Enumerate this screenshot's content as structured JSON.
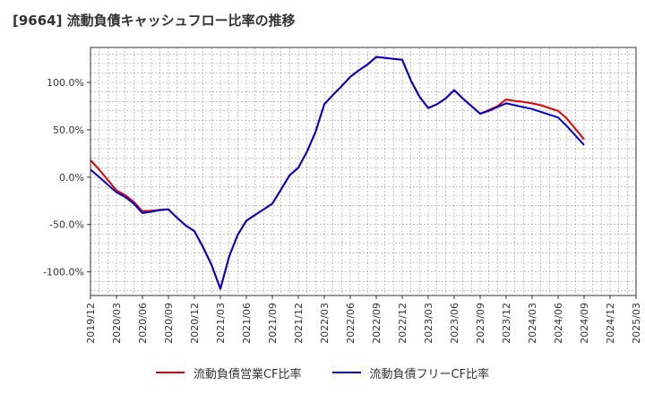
{
  "title": "[9664]  流動負債キャッシュフロー比率の推移",
  "chart_data": {
    "type": "line",
    "x": [
      "2019/12",
      "2020/03",
      "2020/06",
      "2020/09",
      "2020/12",
      "2021/03",
      "2021/06",
      "2021/09",
      "2021/12",
      "2022/03",
      "2022/06",
      "2022/09",
      "2022/12",
      "2023/03",
      "2023/06",
      "2023/09",
      "2023/12",
      "2024/03",
      "2024/06",
      "2024/09",
      "2024/12",
      "2025/03"
    ],
    "ylim": [
      -125,
      137
    ],
    "yticks": [
      100,
      50,
      0,
      -50,
      -100
    ],
    "ytick_labels": [
      "100.0%",
      "50.0%",
      "0.0%",
      "-50.0%",
      "-100.0%"
    ],
    "grid": true,
    "legend_position": "bottom",
    "series": [
      {
        "name": "流動負債営業CF比率",
        "color": "#dd0000",
        "points": [
          [
            "2019/12",
            18
          ],
          [
            "2020/01",
            8
          ],
          [
            "2020/02",
            -3
          ],
          [
            "2020/03",
            -14
          ],
          [
            "2020/04",
            -19
          ],
          [
            "2020/05",
            -26
          ],
          [
            "2020/06",
            -36
          ],
          [
            "2020/07",
            -35.5
          ],
          [
            "2020/08",
            -34.5
          ],
          [
            "2020/09",
            -34
          ],
          [
            "2020/10",
            -43
          ],
          [
            "2020/11",
            -51
          ],
          [
            "2020/12",
            -57
          ],
          [
            "2021/01",
            -74
          ],
          [
            "2021/02",
            -93
          ],
          [
            "2021/03",
            -118
          ],
          [
            "2021/04",
            -84
          ],
          [
            "2021/05",
            -61
          ],
          [
            "2021/06",
            -46
          ],
          [
            "2021/07",
            -40
          ],
          [
            "2021/08",
            -34
          ],
          [
            "2021/09",
            -28
          ],
          [
            "2021/10",
            -13
          ],
          [
            "2021/11",
            2
          ],
          [
            "2021/12",
            10
          ],
          [
            "2022/01",
            27
          ],
          [
            "2022/02",
            48
          ],
          [
            "2022/03",
            77
          ],
          [
            "2022/04",
            87
          ],
          [
            "2022/05",
            96
          ],
          [
            "2022/06",
            106
          ],
          [
            "2022/07",
            113
          ],
          [
            "2022/08",
            119
          ],
          [
            "2022/09",
            127
          ],
          [
            "2022/10",
            126
          ],
          [
            "2022/11",
            125
          ],
          [
            "2022/12",
            124
          ],
          [
            "2023/01",
            102
          ],
          [
            "2023/02",
            85
          ],
          [
            "2023/03",
            73
          ],
          [
            "2023/04",
            77
          ],
          [
            "2023/05",
            83
          ],
          [
            "2023/06",
            92
          ],
          [
            "2023/07",
            83
          ],
          [
            "2023/08",
            75
          ],
          [
            "2023/09",
            67
          ],
          [
            "2023/10",
            71
          ],
          [
            "2023/11",
            75
          ],
          [
            "2023/12",
            82
          ],
          [
            "2024/01",
            80.5
          ],
          [
            "2024/02",
            79.5
          ],
          [
            "2024/03",
            78
          ],
          [
            "2024/04",
            76
          ],
          [
            "2024/05",
            73
          ],
          [
            "2024/06",
            70
          ],
          [
            "2024/07",
            62
          ],
          [
            "2024/08",
            51
          ],
          [
            "2024/09",
            40
          ]
        ]
      },
      {
        "name": "流動負債フリーCF比率",
        "color": "#0000cc",
        "points": [
          [
            "2019/12",
            8
          ],
          [
            "2020/01",
            0
          ],
          [
            "2020/02",
            -8
          ],
          [
            "2020/03",
            -16
          ],
          [
            "2020/04",
            -21
          ],
          [
            "2020/05",
            -28
          ],
          [
            "2020/06",
            -38
          ],
          [
            "2020/07",
            -36.5
          ],
          [
            "2020/08",
            -35
          ],
          [
            "2020/09",
            -34
          ],
          [
            "2020/10",
            -43
          ],
          [
            "2020/11",
            -51
          ],
          [
            "2020/12",
            -57
          ],
          [
            "2021/01",
            -74
          ],
          [
            "2021/02",
            -93
          ],
          [
            "2021/03",
            -118
          ],
          [
            "2021/04",
            -84
          ],
          [
            "2021/05",
            -61
          ],
          [
            "2021/06",
            -46
          ],
          [
            "2021/07",
            -40
          ],
          [
            "2021/08",
            -34
          ],
          [
            "2021/09",
            -28
          ],
          [
            "2021/10",
            -13
          ],
          [
            "2021/11",
            2
          ],
          [
            "2021/12",
            10
          ],
          [
            "2022/01",
            27
          ],
          [
            "2022/02",
            48
          ],
          [
            "2022/03",
            77
          ],
          [
            "2022/04",
            87
          ],
          [
            "2022/05",
            96
          ],
          [
            "2022/06",
            106
          ],
          [
            "2022/07",
            113
          ],
          [
            "2022/08",
            119
          ],
          [
            "2022/09",
            127
          ],
          [
            "2022/10",
            126
          ],
          [
            "2022/11",
            125
          ],
          [
            "2022/12",
            124
          ],
          [
            "2023/01",
            102
          ],
          [
            "2023/02",
            85
          ],
          [
            "2023/03",
            73
          ],
          [
            "2023/04",
            77
          ],
          [
            "2023/05",
            83
          ],
          [
            "2023/06",
            92
          ],
          [
            "2023/07",
            83
          ],
          [
            "2023/08",
            75
          ],
          [
            "2023/09",
            67
          ],
          [
            "2023/10",
            70
          ],
          [
            "2023/11",
            74
          ],
          [
            "2023/12",
            78
          ],
          [
            "2024/01",
            76
          ],
          [
            "2024/02",
            74
          ],
          [
            "2024/03",
            72
          ],
          [
            "2024/04",
            69
          ],
          [
            "2024/05",
            66
          ],
          [
            "2024/06",
            63
          ],
          [
            "2024/07",
            54
          ],
          [
            "2024/08",
            44
          ],
          [
            "2024/09",
            34
          ]
        ]
      }
    ]
  }
}
